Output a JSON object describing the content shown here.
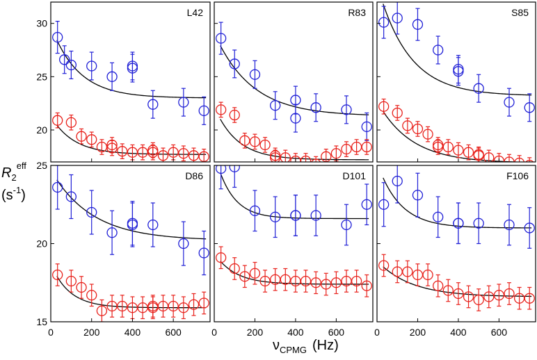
{
  "chart_data": {
    "type": "scatter",
    "figure": {
      "ylabel": {
        "symbol": "R",
        "sub": "2",
        "sup": "eff",
        "unit_main": "(s",
        "unit_sup": "-1",
        "unit_close": ")"
      },
      "xlabel": {
        "symbol": "ν",
        "sub": "CPMG",
        "unit": "(Hz)"
      },
      "series_colors": {
        "blue": "#1f1fd6",
        "red": "#e8201a",
        "fit": "#000000"
      }
    },
    "rows": [
      {
        "ylim": [
          17,
          32
        ],
        "yticks": [
          20,
          25,
          30
        ]
      },
      {
        "ylim": [
          15,
          25
        ],
        "yticks": [
          15,
          20,
          25
        ]
      }
    ],
    "xlim": [
      0,
      780
    ],
    "xticks": [
      0,
      200,
      400,
      600
    ],
    "panels": [
      {
        "label": "L42",
        "row": 0,
        "col": 0,
        "blue": {
          "x": [
            33,
            67,
            100,
            200,
            300,
            400,
            400,
            500,
            650,
            750
          ],
          "y": [
            28.7,
            26.6,
            26.1,
            26.0,
            25.0,
            25.8,
            26.0,
            22.4,
            22.6,
            21.8
          ],
          "err": [
            1.5,
            1.3,
            1.3,
            1.3,
            1.3,
            1.3,
            1.3,
            1.3,
            1.3,
            1.3
          ],
          "fit": {
            "a": 23.0,
            "b": 6.8,
            "k": 0.0075
          }
        },
        "red": {
          "x": [
            33,
            100,
            150,
            200,
            250,
            300,
            300,
            350,
            400,
            450,
            500,
            500,
            550,
            600,
            650,
            700,
            750
          ],
          "y": [
            20.9,
            20.7,
            19.4,
            19.1,
            18.4,
            18.6,
            18.3,
            18.0,
            17.9,
            17.9,
            18.1,
            17.9,
            17.6,
            17.9,
            17.8,
            17.6,
            17.5
          ],
          "err": [
            0.7,
            0.7,
            0.7,
            0.7,
            0.7,
            0.7,
            0.7,
            0.7,
            0.7,
            0.7,
            0.7,
            0.7,
            0.7,
            0.7,
            0.7,
            0.7,
            0.7
          ],
          "fit": {
            "a": 17.7,
            "b": 3.6,
            "k": 0.009
          }
        }
      },
      {
        "label": "R83",
        "row": 0,
        "col": 1,
        "blue": {
          "x": [
            33,
            100,
            200,
            300,
            400,
            400,
            500,
            650,
            750
          ],
          "y": [
            28.6,
            26.2,
            25.2,
            22.3,
            22.8,
            21.1,
            22.1,
            21.9,
            20.3
          ],
          "err": [
            1.5,
            1.3,
            1.3,
            1.3,
            1.3,
            1.3,
            1.3,
            1.3,
            1.3
          ],
          "fit": {
            "a": 21.3,
            "b": 7.8,
            "k": 0.0055
          }
        },
        "red": {
          "x": [
            33,
            100,
            150,
            200,
            250,
            300,
            300,
            350,
            400,
            450,
            500,
            550,
            600,
            650,
            700,
            750
          ],
          "y": [
            21.9,
            21.4,
            19.0,
            18.9,
            18.6,
            17.6,
            17.4,
            17.4,
            17.1,
            17.1,
            16.8,
            17.5,
            17.8,
            18.2,
            18.4,
            18.4
          ],
          "err": [
            0.7,
            0.7,
            0.7,
            0.7,
            0.7,
            0.7,
            0.7,
            0.7,
            0.7,
            0.7,
            0.7,
            0.7,
            0.7,
            0.7,
            0.7,
            0.7
          ],
          "fit": {
            "a": 17.2,
            "b": 5.0,
            "k": 0.009
          }
        }
      },
      {
        "label": "S85",
        "row": 0,
        "col": 2,
        "blue": {
          "x": [
            33,
            100,
            200,
            300,
            400,
            400,
            500,
            650,
            750
          ],
          "y": [
            30.1,
            30.5,
            29.9,
            27.5,
            25.7,
            25.5,
            23.9,
            22.6,
            22.1
          ],
          "err": [
            1.5,
            1.5,
            1.5,
            1.3,
            1.3,
            1.3,
            1.3,
            1.3,
            1.3
          ],
          "fit": {
            "a": 23.2,
            "b": 10.5,
            "k": 0.0065
          }
        },
        "red": {
          "x": [
            33,
            100,
            150,
            200,
            250,
            300,
            300,
            350,
            400,
            450,
            500,
            500,
            550,
            600,
            650,
            700,
            750
          ],
          "y": [
            22.2,
            21.6,
            20.4,
            20.1,
            19.6,
            18.6,
            18.4,
            18.4,
            18.1,
            17.9,
            17.7,
            17.6,
            17.4,
            17.1,
            17.0,
            16.9,
            16.7
          ],
          "err": [
            0.7,
            0.7,
            0.7,
            0.7,
            0.7,
            0.7,
            0.7,
            0.7,
            0.7,
            0.7,
            0.7,
            0.7,
            0.7,
            0.7,
            0.7,
            0.7,
            0.7
          ],
          "fit": {
            "a": 16.9,
            "b": 5.8,
            "k": 0.006
          }
        }
      },
      {
        "label": "D86",
        "row": 1,
        "col": 0,
        "blue": {
          "x": [
            33,
            100,
            200,
            300,
            400,
            400,
            500,
            650,
            750
          ],
          "y": [
            23.6,
            23.0,
            22.0,
            20.7,
            21.3,
            21.2,
            21.2,
            20.0,
            19.4
          ],
          "err": [
            1.4,
            1.4,
            1.4,
            1.4,
            1.4,
            1.4,
            1.4,
            1.4,
            1.4
          ],
          "fit": {
            "a": 20.2,
            "b": 4.5,
            "k": 0.005
          }
        },
        "red": {
          "x": [
            33,
            100,
            150,
            200,
            250,
            300,
            350,
            400,
            450,
            500,
            500,
            550,
            600,
            650,
            700,
            750
          ],
          "y": [
            18.0,
            17.6,
            17.2,
            16.7,
            15.7,
            16.0,
            16.0,
            15.9,
            15.9,
            15.9,
            16.0,
            16.0,
            16.0,
            15.9,
            16.1,
            16.2
          ],
          "err": [
            0.7,
            0.7,
            0.7,
            0.7,
            0.7,
            0.7,
            0.7,
            0.7,
            0.7,
            0.7,
            0.7,
            0.7,
            0.7,
            0.7,
            0.7,
            0.7
          ],
          "fit": {
            "a": 15.9,
            "b": 2.8,
            "k": 0.011
          }
        }
      },
      {
        "label": "D101",
        "row": 1,
        "col": 1,
        "blue": {
          "x": [
            33,
            100,
            200,
            300,
            400,
            400,
            500,
            650,
            750
          ],
          "y": [
            24.8,
            24.9,
            22.1,
            21.7,
            21.8,
            21.8,
            21.8,
            21.2,
            22.5
          ],
          "err": [
            1.3,
            1.3,
            1.3,
            1.3,
            1.3,
            1.3,
            1.3,
            1.3,
            1.3
          ],
          "fit": {
            "a": 21.6,
            "b": 4.2,
            "k": 0.012
          }
        },
        "red": {
          "x": [
            33,
            100,
            150,
            200,
            250,
            300,
            350,
            400,
            450,
            500,
            550,
            600,
            650,
            700,
            750
          ],
          "y": [
            19.1,
            18.4,
            17.9,
            18.1,
            17.6,
            17.7,
            17.7,
            17.6,
            17.6,
            17.5,
            17.4,
            17.5,
            17.6,
            17.6,
            17.3
          ],
          "err": [
            0.7,
            0.7,
            0.7,
            0.7,
            0.7,
            0.7,
            0.7,
            0.7,
            0.7,
            0.7,
            0.7,
            0.7,
            0.7,
            0.7,
            0.7
          ],
          "fit": {
            "a": 17.4,
            "b": 2.0,
            "k": 0.01
          }
        }
      },
      {
        "label": "F106",
        "row": 1,
        "col": 2,
        "blue": {
          "x": [
            33,
            100,
            200,
            300,
            400,
            400,
            500,
            650,
            750
          ],
          "y": [
            22.5,
            24.0,
            23.1,
            21.7,
            21.3,
            21.3,
            21.3,
            21.2,
            21.0
          ],
          "err": [
            1.4,
            1.4,
            1.4,
            1.3,
            1.3,
            1.3,
            1.3,
            1.3,
            1.3
          ],
          "fit": {
            "a": 21.0,
            "b": 4.2,
            "k": 0.009
          }
        },
        "red": {
          "x": [
            33,
            100,
            150,
            200,
            250,
            300,
            350,
            400,
            450,
            500,
            550,
            600,
            650,
            700,
            750
          ],
          "y": [
            18.6,
            18.2,
            18.2,
            18.0,
            18.0,
            17.3,
            17.0,
            16.8,
            16.6,
            16.4,
            16.6,
            16.7,
            16.8,
            16.5,
            16.5
          ],
          "err": [
            0.7,
            0.7,
            0.7,
            0.7,
            0.7,
            0.7,
            0.7,
            0.7,
            0.7,
            0.7,
            0.7,
            0.7,
            0.7,
            0.7,
            0.7
          ],
          "fit": {
            "a": 16.6,
            "b": 2.3,
            "k": 0.006
          }
        }
      }
    ]
  }
}
